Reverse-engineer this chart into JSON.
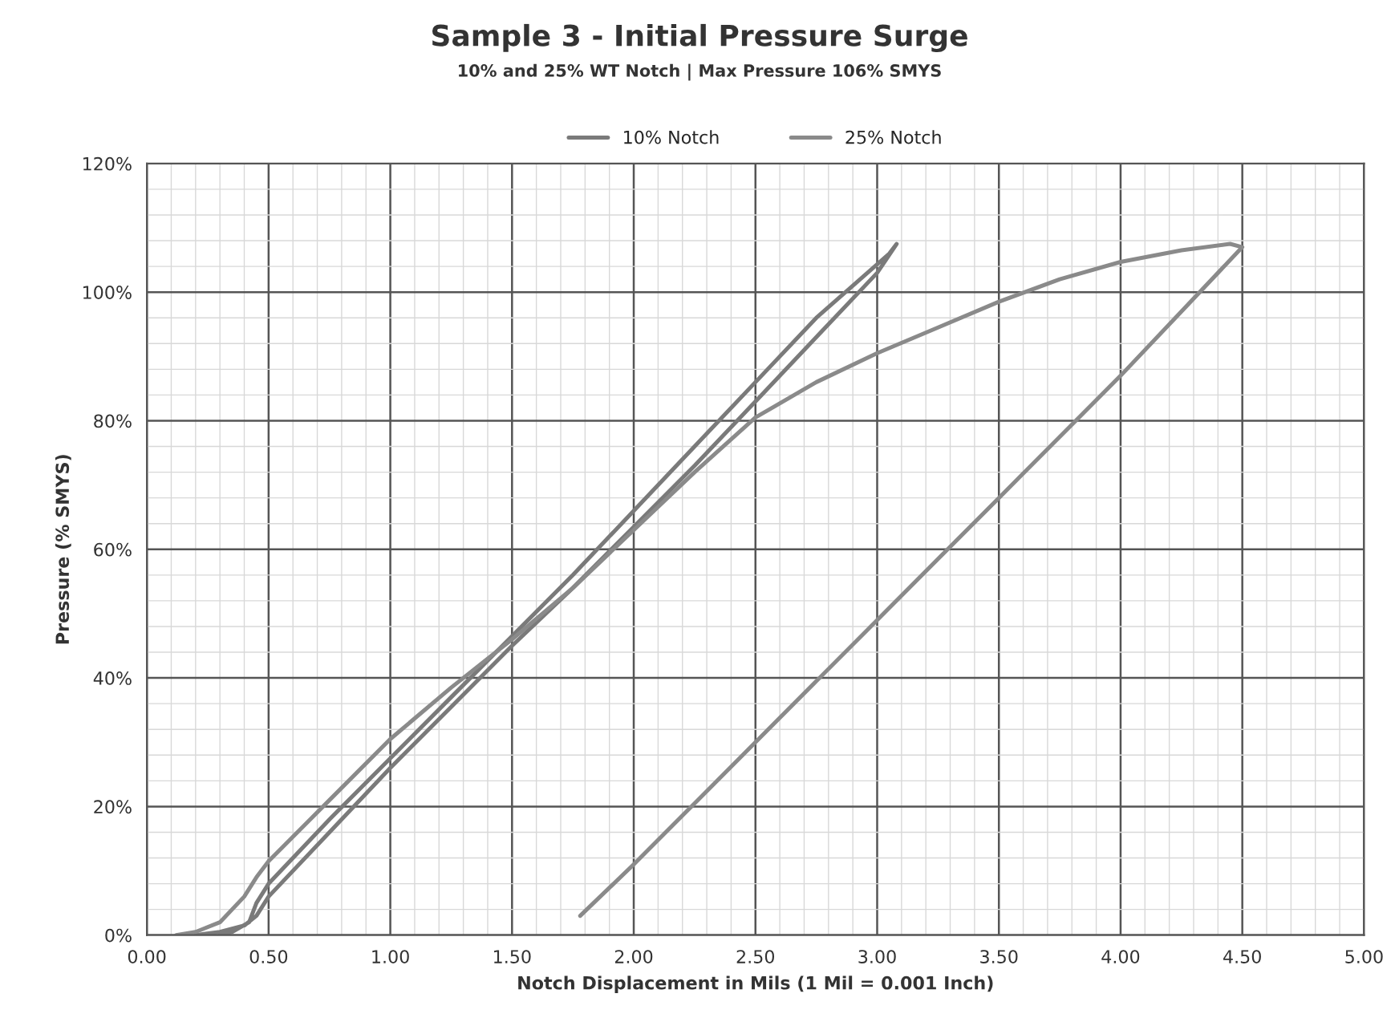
{
  "chart_data": {
    "type": "line",
    "title": "Sample 3 - Initial Pressure Surge",
    "subtitle": "10% and 25% WT Notch | Max Pressure 106% SMYS",
    "xlabel": "Notch Displacement in Mils (1 Mil = 0.001 Inch)",
    "ylabel": "Pressure (% SMYS)",
    "series": [
      {
        "name": "10% Notch",
        "color": "#7a7a7a",
        "x": [
          0.2,
          0.3,
          0.4,
          0.45,
          0.5,
          0.75,
          1.0,
          1.25,
          1.5,
          1.75,
          2.0,
          2.25,
          2.5,
          2.75,
          3.0,
          3.08,
          3.05,
          2.75,
          2.5,
          2.25,
          2.0,
          1.75,
          1.5,
          1.25,
          1.0,
          0.75,
          0.5,
          0.45,
          0.42,
          0.35,
          0.3
        ],
        "values": [
          0,
          0.5,
          1.5,
          3,
          6,
          16,
          26,
          35.5,
          45,
          54,
          63.5,
          73,
          83,
          93,
          103,
          107.5,
          106,
          96,
          86,
          76,
          66,
          56,
          46.5,
          37,
          27.5,
          18,
          8,
          5,
          2,
          0.5,
          0
        ]
      },
      {
        "name": "25% Notch",
        "color": "#8a8a8a",
        "x": [
          0.12,
          0.2,
          0.3,
          0.4,
          0.45,
          0.5,
          0.75,
          1.0,
          1.25,
          1.5,
          1.75,
          2.0,
          2.25,
          2.5,
          2.75,
          3.0,
          3.25,
          3.5,
          3.75,
          4.0,
          4.25,
          4.45,
          4.5,
          4.25,
          4.0,
          3.75,
          3.5,
          3.25,
          3.0,
          2.75,
          2.5,
          2.25,
          2.0,
          1.78
        ],
        "values": [
          0,
          0.5,
          2,
          6,
          9,
          11.5,
          21,
          30.5,
          38.5,
          46,
          54,
          63,
          72,
          80.5,
          86,
          90.5,
          94.5,
          98.5,
          102,
          104.7,
          106.5,
          107.5,
          107,
          97,
          87,
          77.5,
          68,
          58.5,
          49,
          39.5,
          30,
          20.5,
          11,
          3
        ]
      }
    ],
    "xlim": [
      0,
      5
    ],
    "xticks": [
      {
        "value": 0,
        "label": "0.00"
      },
      {
        "value": 0.5,
        "label": "0.50"
      },
      {
        "value": 1,
        "label": "1.00"
      },
      {
        "value": 1.5,
        "label": "1.50"
      },
      {
        "value": 2,
        "label": "2.00"
      },
      {
        "value": 2.5,
        "label": "2.50"
      },
      {
        "value": 3,
        "label": "3.00"
      },
      {
        "value": 3.5,
        "label": "3.50"
      },
      {
        "value": 4,
        "label": "4.00"
      },
      {
        "value": 4.5,
        "label": "4.50"
      },
      {
        "value": 5,
        "label": "5.00"
      }
    ],
    "ylim": [
      0,
      120
    ],
    "yticks": [
      {
        "value": 0,
        "label": "0%"
      },
      {
        "value": 20,
        "label": "20%"
      },
      {
        "value": 40,
        "label": "40%"
      },
      {
        "value": 60,
        "label": "60%"
      },
      {
        "value": 80,
        "label": "80%"
      },
      {
        "value": 100,
        "label": "100%"
      },
      {
        "value": 120,
        "label": "120%"
      }
    ],
    "grid": true,
    "legend": "top",
    "marker": "none",
    "line_style": "solid"
  }
}
